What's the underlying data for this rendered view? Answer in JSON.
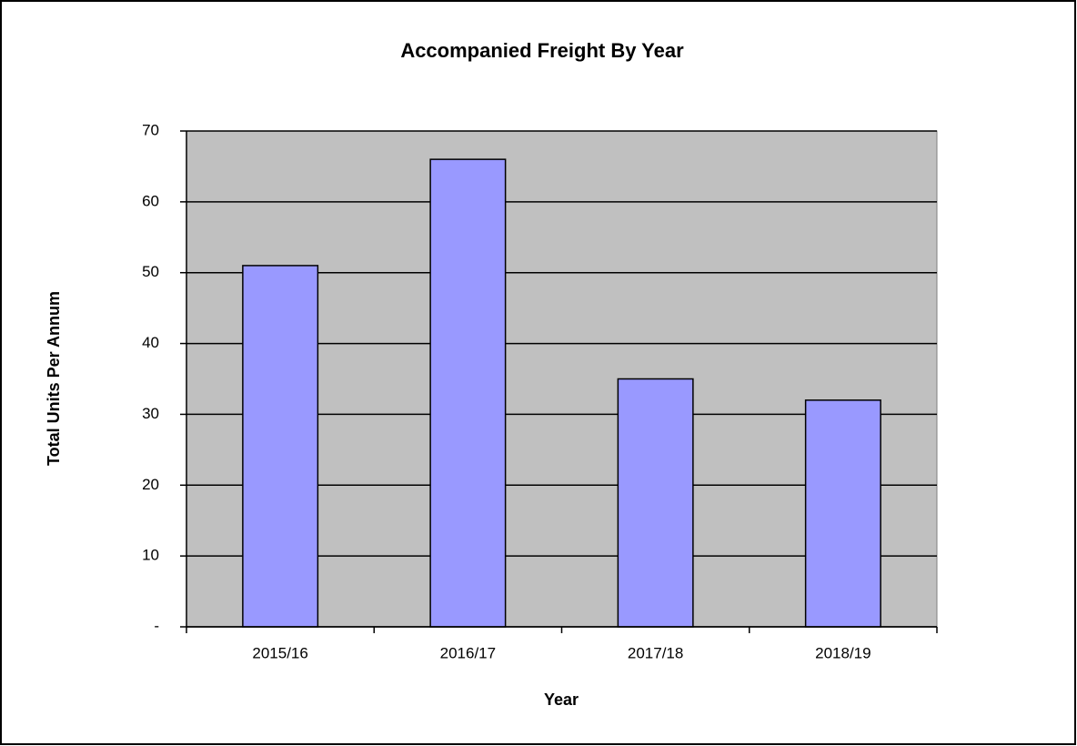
{
  "chart_data": {
    "type": "bar",
    "title": "Accompanied Freight By Year",
    "x_label": "Year",
    "y_label": "Total Units Per Annum",
    "categories": [
      "2015/16",
      "2016/17",
      "2017/18",
      "2018/19"
    ],
    "values": [
      51,
      66,
      35,
      32
    ],
    "color": "#9999ff",
    "ylim": [
      0,
      70
    ],
    "yticks": [
      {
        "value": 0,
        "label": "-"
      },
      10,
      20,
      30,
      40,
      50,
      60,
      70
    ],
    "grid": true
  }
}
